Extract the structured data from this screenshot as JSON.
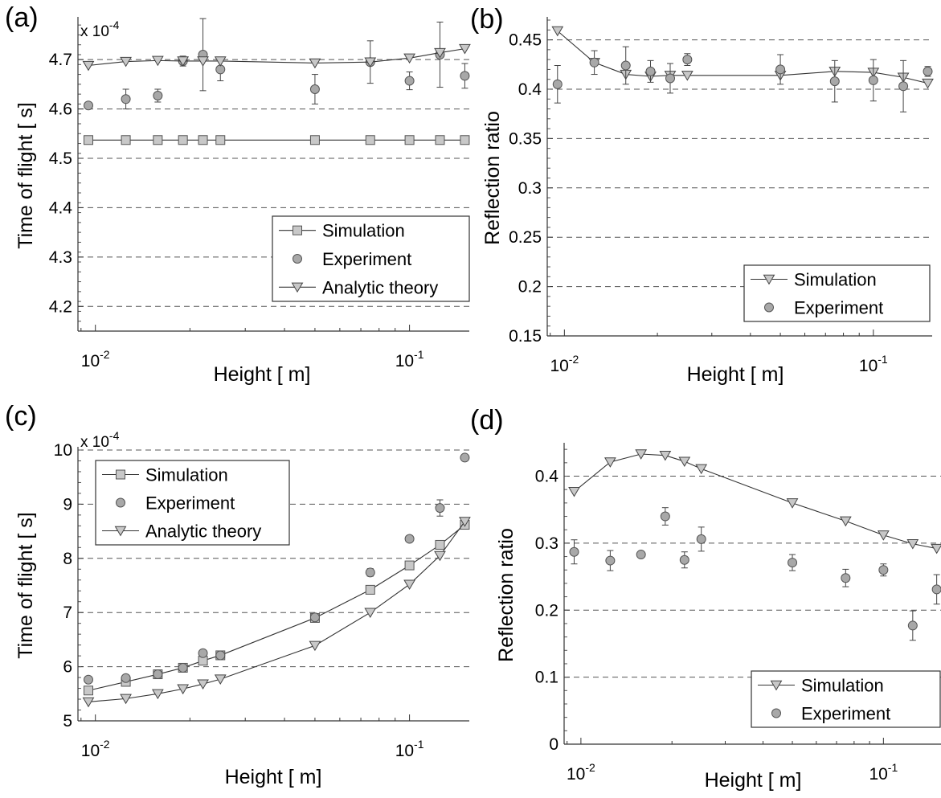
{
  "chart_data": [
    {
      "panel_label": "(a)",
      "type": "line",
      "xlabel": "Height [ m]",
      "ylabel": "Time of flight [ s]",
      "exponent_label": "x 10",
      "exponent_power": "-4",
      "xscale": "log",
      "xlim": [
        0.0088,
        0.155
      ],
      "ylim": [
        4.15,
        4.78
      ],
      "yticks": [
        4.2,
        4.3,
        4.4,
        4.5,
        4.6,
        4.7
      ],
      "ytick_labels": [
        "4.2",
        "4.3",
        "4.4",
        "4.5",
        "4.6",
        "4.7"
      ],
      "grid": "horizontal dashed",
      "legend_position": "lower-right",
      "series": [
        {
          "name": "Simulation",
          "marker": "square",
          "line": true,
          "color": "#c8c8c8",
          "x": [
            0.0095,
            0.0125,
            0.0158,
            0.019,
            0.022,
            0.025,
            0.05,
            0.075,
            0.1,
            0.125,
            0.15
          ],
          "y": [
            4.537,
            4.537,
            4.537,
            4.537,
            4.537,
            4.537,
            4.537,
            4.537,
            4.537,
            4.537,
            4.537
          ]
        },
        {
          "name": "Experiment",
          "marker": "circle",
          "line": false,
          "color": "#a8a8a8",
          "x": [
            0.0095,
            0.0125,
            0.0158,
            0.019,
            0.022,
            0.025,
            0.05,
            0.075,
            0.1,
            0.125,
            0.15
          ],
          "y": [
            4.607,
            4.62,
            4.627,
            4.697,
            4.71,
            4.68,
            4.64,
            4.695,
            4.657,
            4.71,
            4.667
          ],
          "err": [
            0,
            0.02,
            0.013,
            0.01,
            0.073,
            0.023,
            0.03,
            0.043,
            0.018,
            0.066,
            0.025
          ]
        },
        {
          "name": "Analytic theory",
          "marker": "triangle-down",
          "line": true,
          "color": "#c8c8c8",
          "x": [
            0.0095,
            0.0125,
            0.0158,
            0.019,
            0.022,
            0.025,
            0.05,
            0.075,
            0.1,
            0.125,
            0.15
          ],
          "y": [
            4.688,
            4.696,
            4.698,
            4.697,
            4.697,
            4.697,
            4.693,
            4.695,
            4.703,
            4.714,
            4.722
          ]
        }
      ]
    },
    {
      "panel_label": "(b)",
      "type": "line",
      "xlabel": "Height [ m]",
      "ylabel": "Reflection ratio",
      "xscale": "log",
      "xlim": [
        0.0088,
        0.155
      ],
      "ylim": [
        0.15,
        0.47
      ],
      "yticks": [
        0.15,
        0.2,
        0.25,
        0.3,
        0.35,
        0.4,
        0.45
      ],
      "ytick_labels": [
        "0.15",
        "0.2",
        "0.25",
        "0.3",
        "0.35",
        "0.4",
        "0.45"
      ],
      "grid": "horizontal dashed",
      "legend_position": "lower-right",
      "series": [
        {
          "name": "Simulation",
          "marker": "triangle-down",
          "line": true,
          "color": "#c8c8c8",
          "x": [
            0.0095,
            0.0125,
            0.0158,
            0.019,
            0.022,
            0.025,
            0.05,
            0.075,
            0.1,
            0.125,
            0.15
          ],
          "y": [
            0.459,
            0.427,
            0.415,
            0.413,
            0.414,
            0.414,
            0.414,
            0.418,
            0.417,
            0.412,
            0.406
          ]
        },
        {
          "name": "Experiment",
          "marker": "circle",
          "line": false,
          "color": "#a8a8a8",
          "x": [
            0.0095,
            0.0125,
            0.0158,
            0.019,
            0.022,
            0.025,
            0.05,
            0.075,
            0.1,
            0.125,
            0.15
          ],
          "y": [
            0.405,
            0.427,
            0.424,
            0.418,
            0.411,
            0.43,
            0.42,
            0.408,
            0.409,
            0.403,
            0.418
          ],
          "err": [
            0.019,
            0.012,
            0.019,
            0.011,
            0.015,
            0.006,
            0.015,
            0.021,
            0.021,
            0.026,
            0.005
          ]
        }
      ]
    },
    {
      "panel_label": "(c)",
      "type": "line",
      "xlabel": "Height [ m]",
      "ylabel": "Time of flight [ s]",
      "exponent_label": "x 10",
      "exponent_power": "-4",
      "xscale": "log",
      "xlim": [
        0.0088,
        0.155
      ],
      "ylim": [
        5,
        10
      ],
      "yticks": [
        5,
        6,
        7,
        8,
        9,
        10
      ],
      "ytick_labels": [
        "5",
        "6",
        "7",
        "8",
        "9",
        "10"
      ],
      "grid": "horizontal dashed",
      "legend_position": "top-left",
      "series": [
        {
          "name": "Simulation",
          "marker": "square",
          "line": true,
          "color": "#c8c8c8",
          "x": [
            0.0095,
            0.0125,
            0.0158,
            0.019,
            0.022,
            0.025,
            0.05,
            0.075,
            0.1,
            0.125,
            0.15
          ],
          "y": [
            5.56,
            5.72,
            5.86,
            5.98,
            6.11,
            6.21,
            6.9,
            7.42,
            7.87,
            8.25,
            8.62
          ]
        },
        {
          "name": "Experiment",
          "marker": "circle",
          "line": false,
          "color": "#a8a8a8",
          "x": [
            0.0095,
            0.0125,
            0.0158,
            0.019,
            0.022,
            0.025,
            0.05,
            0.075,
            0.1,
            0.125,
            0.15
          ],
          "y": [
            5.76,
            5.79,
            5.86,
            5.98,
            6.25,
            6.21,
            6.91,
            7.74,
            8.36,
            8.93,
            9.86
          ],
          "err": [
            0,
            0,
            0,
            0,
            0,
            0,
            0.05,
            0.07,
            0,
            0.15,
            0
          ]
        },
        {
          "name": "Analytic theory",
          "marker": "triangle-down",
          "line": true,
          "color": "#c8c8c8",
          "x": [
            0.0095,
            0.0125,
            0.0158,
            0.019,
            0.022,
            0.025,
            0.05,
            0.075,
            0.1,
            0.125,
            0.15
          ],
          "y": [
            5.35,
            5.41,
            5.5,
            5.59,
            5.68,
            5.77,
            6.39,
            7.0,
            7.52,
            8.05,
            8.68
          ]
        }
      ]
    },
    {
      "panel_label": "(d)",
      "type": "line",
      "xlabel": "Height [ m]",
      "ylabel": "Reflection ratio",
      "xscale": "log",
      "xlim": [
        0.0088,
        0.155
      ],
      "ylim": [
        0,
        0.445
      ],
      "yticks": [
        0,
        0.1,
        0.2,
        0.3,
        0.4
      ],
      "ytick_labels": [
        "0",
        "0.1",
        "0.2",
        "0.3",
        "0.4"
      ],
      "grid": "horizontal dashed",
      "legend_position": "lower-right",
      "series": [
        {
          "name": "Simulation",
          "marker": "triangle-down",
          "line": true,
          "color": "#c8c8c8",
          "x": [
            0.0095,
            0.0125,
            0.0158,
            0.019,
            0.022,
            0.025,
            0.05,
            0.075,
            0.1,
            0.125,
            0.15
          ],
          "y": [
            0.377,
            0.421,
            0.433,
            0.431,
            0.422,
            0.411,
            0.36,
            0.333,
            0.312,
            0.299,
            0.292
          ]
        },
        {
          "name": "Experiment",
          "marker": "circle",
          "line": false,
          "color": "#a8a8a8",
          "x": [
            0.0095,
            0.0125,
            0.0158,
            0.019,
            0.022,
            0.025,
            0.05,
            0.075,
            0.1,
            0.125,
            0.15
          ],
          "y": [
            0.287,
            0.274,
            0.283,
            0.34,
            0.275,
            0.306,
            0.271,
            0.248,
            0.26,
            0.177,
            0.231
          ],
          "err": [
            0.018,
            0.015,
            0,
            0.013,
            0.012,
            0.018,
            0.012,
            0.013,
            0.009,
            0.022,
            0.022
          ]
        }
      ]
    }
  ]
}
